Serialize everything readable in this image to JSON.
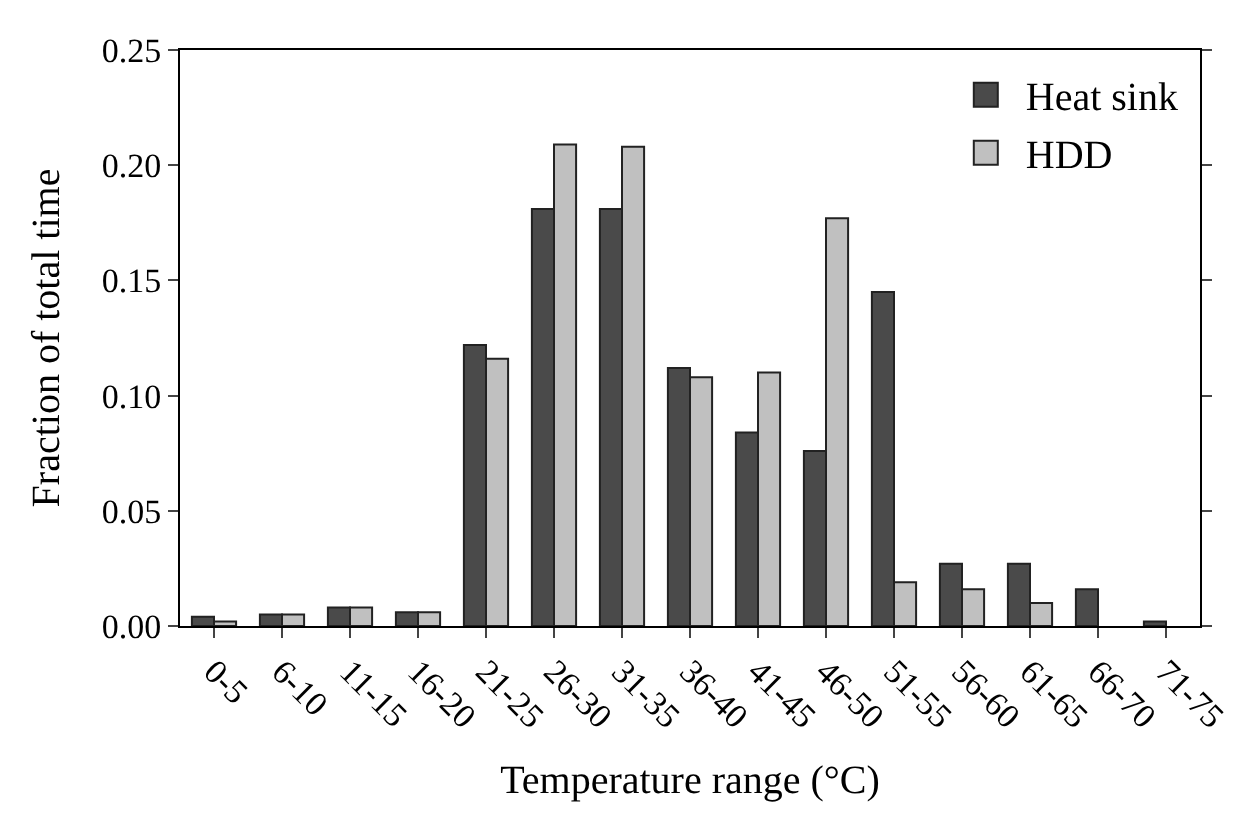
{
  "chart_data": {
    "type": "bar",
    "xlabel": "Temperature range (°C)",
    "ylabel": "Fraction of total time",
    "categories": [
      "0-5",
      "6-10",
      "11-15",
      "16-20",
      "21-25",
      "26-30",
      "31-35",
      "36-40",
      "41-45",
      "46-50",
      "51-55",
      "56-60",
      "61-65",
      "66-70",
      "71-75"
    ],
    "series": [
      {
        "name": "Heat sink",
        "color": "#4a4a4a",
        "values": [
          0.004,
          0.005,
          0.008,
          0.006,
          0.122,
          0.181,
          0.181,
          0.112,
          0.084,
          0.076,
          0.145,
          0.027,
          0.027,
          0.016,
          0.002
        ]
      },
      {
        "name": "HDD",
        "color": "#c0c0c0",
        "values": [
          0.002,
          0.005,
          0.008,
          0.006,
          0.116,
          0.209,
          0.208,
          0.108,
          0.11,
          0.177,
          0.019,
          0.016,
          0.01,
          null,
          null
        ]
      }
    ],
    "ylim": [
      0,
      0.25
    ],
    "yticks": [
      {
        "value": 0,
        "label": "0.00"
      },
      {
        "value": 0.05,
        "label": "0.05"
      },
      {
        "value": 0.1,
        "label": "0.10"
      },
      {
        "value": 0.15,
        "label": "0.15"
      },
      {
        "value": 0.2,
        "label": "0.20"
      },
      {
        "value": 0.25,
        "label": "0.25"
      }
    ],
    "legend": "top right"
  }
}
